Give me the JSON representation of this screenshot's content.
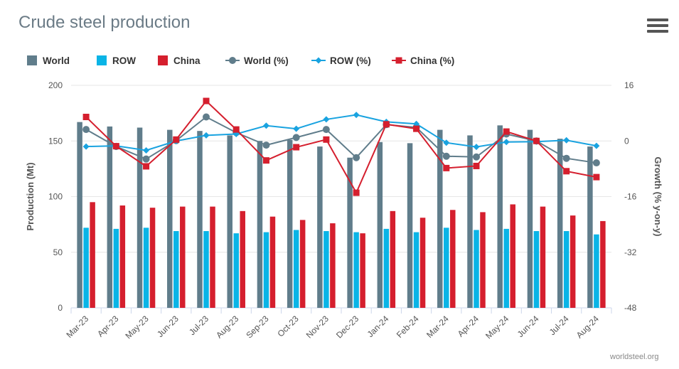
{
  "header": {
    "title": "Crude steel production"
  },
  "footer": {
    "credit": "worldsteel.org"
  },
  "icons": {
    "menu": "hamburger-menu-icon"
  },
  "colors": {
    "world": "#607d8b",
    "row": "#0ab4e6",
    "china": "#d51f2e",
    "world_pct": "#607d8b",
    "row_pct": "#19a3e0",
    "china_pct": "#d51f2e"
  },
  "chart_data": {
    "type": "bar",
    "title": "Crude steel production",
    "categories": [
      "Mar-23",
      "Apr-23",
      "May-23",
      "Jun-23",
      "Jul-23",
      "Aug-23",
      "Sep-23",
      "Oct-23",
      "Nov-23",
      "Dec-23",
      "Jan-24",
      "Feb-24",
      "Mar-24",
      "Apr-24",
      "May-24",
      "Jun-24",
      "Jul-24",
      "Aug-24"
    ],
    "ylabel": "Production (Mt)",
    "ylim": [
      0,
      200
    ],
    "yticks": [
      0,
      50,
      100,
      150,
      200
    ],
    "y2label": "Growth (% y-on-y)",
    "y2lim": [
      -48,
      16
    ],
    "y2ticks": [
      -48,
      -32,
      -16,
      0,
      16
    ],
    "legend_position": "top-left",
    "grid": "horizontal",
    "series": [
      {
        "name": "World",
        "kind": "bar",
        "axis": "left",
        "values": [
          167,
          163,
          162,
          160,
          159,
          155,
          150,
          151,
          145,
          135,
          149,
          148,
          160,
          155,
          164,
          160,
          152,
          145
        ]
      },
      {
        "name": "ROW",
        "kind": "bar",
        "axis": "left",
        "values": [
          72,
          71,
          72,
          69,
          69,
          67,
          68,
          70,
          69,
          68,
          71,
          68,
          72,
          70,
          71,
          69,
          69,
          66
        ]
      },
      {
        "name": "China",
        "kind": "bar",
        "axis": "left",
        "values": [
          95,
          92,
          90,
          91,
          91,
          87,
          82,
          79,
          76,
          67,
          87,
          81,
          88,
          86,
          93,
          91,
          83,
          78
        ]
      },
      {
        "name": "World (%)",
        "kind": "line",
        "axis": "right",
        "values": [
          3.3,
          -1.6,
          -5.2,
          0.1,
          6.9,
          2.4,
          -1.2,
          1.0,
          3.3,
          -4.8,
          4.7,
          3.9,
          -4.4,
          -4.6,
          2.0,
          0.0,
          -5.0,
          -6.3
        ]
      },
      {
        "name": "ROW (%)",
        "kind": "line",
        "axis": "right",
        "values": [
          -1.6,
          -1.4,
          -2.7,
          0.0,
          1.6,
          2.0,
          4.4,
          3.5,
          6.2,
          7.5,
          5.5,
          4.9,
          -0.5,
          -1.7,
          -0.3,
          -0.2,
          0.2,
          -1.4
        ]
      },
      {
        "name": "China (%)",
        "kind": "line",
        "axis": "right",
        "values": [
          6.9,
          -1.5,
          -7.3,
          0.4,
          11.5,
          3.3,
          -5.6,
          -1.8,
          0.4,
          -14.9,
          4.8,
          3.5,
          -7.8,
          -7.2,
          2.7,
          0.0,
          -8.7,
          -10.4
        ]
      }
    ]
  }
}
